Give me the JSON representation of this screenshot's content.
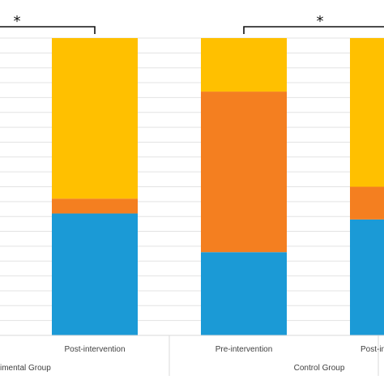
{
  "chart_data": {
    "type": "bar",
    "stacked": true,
    "categories": [
      "Pre-intervention",
      "Post-intervention",
      "Pre-intervention",
      "Post-intervention"
    ],
    "category_labels_visible": [
      "",
      "Post-intervention",
      "Pre-intervention",
      "Post-in"
    ],
    "groups": [
      {
        "label": "imental Group",
        "categories": [
          0,
          1
        ]
      },
      {
        "label": "Control Group",
        "categories": [
          2,
          3
        ]
      }
    ],
    "series": [
      {
        "color": "#1B9AD6",
        "values": [
          null,
          41,
          28,
          39
        ]
      },
      {
        "color": "#F47F20",
        "values": [
          null,
          5,
          54,
          11
        ]
      },
      {
        "color": "#FFC000",
        "values": [
          null,
          54,
          18,
          50
        ]
      }
    ],
    "ylim": [
      0,
      100
    ],
    "grid": true,
    "annotations": [
      {
        "text": "*",
        "bracket": [
          "Pre-intervention",
          "Post-intervention"
        ],
        "group": "Experimental"
      },
      {
        "text": "*",
        "bracket": [
          "Pre-intervention",
          "Post-intervention"
        ],
        "group": "Control"
      }
    ]
  }
}
